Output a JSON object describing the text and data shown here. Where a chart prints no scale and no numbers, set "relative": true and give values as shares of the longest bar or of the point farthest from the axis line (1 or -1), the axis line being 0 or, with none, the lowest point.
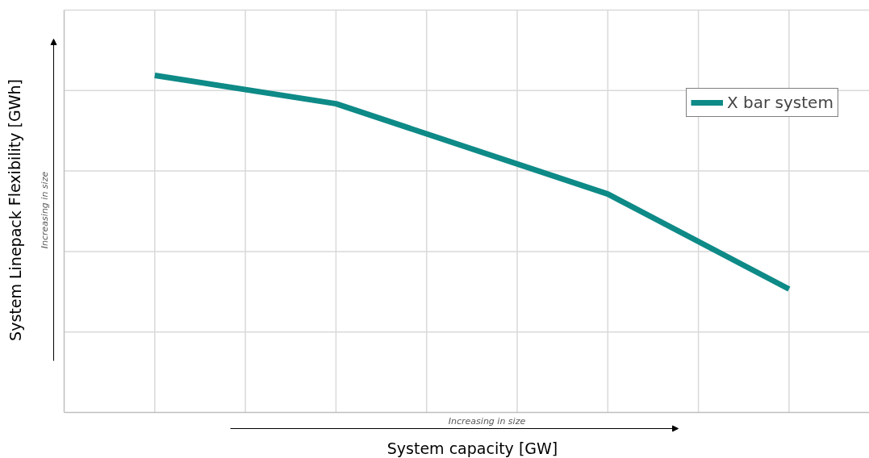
{
  "chart_data": {
    "type": "line",
    "relative": true,
    "xlabel": "System capacity [GW]",
    "ylabel": "System Linepack Flexibility [GWh]",
    "annotations": [
      "Increasing in size",
      "Increasing in size"
    ],
    "categories": [
      null,
      null,
      null,
      null,
      null,
      null,
      null,
      null
    ],
    "grid": true,
    "legend": "top right",
    "marker": "none",
    "line_style": "solid",
    "series": [
      {
        "name": "X bar system",
        "color": "#0e8a87",
        "values": [
          1,
          null,
          0.916,
          null,
          null,
          0.648,
          null,
          0.366
        ]
      }
    ]
  }
}
